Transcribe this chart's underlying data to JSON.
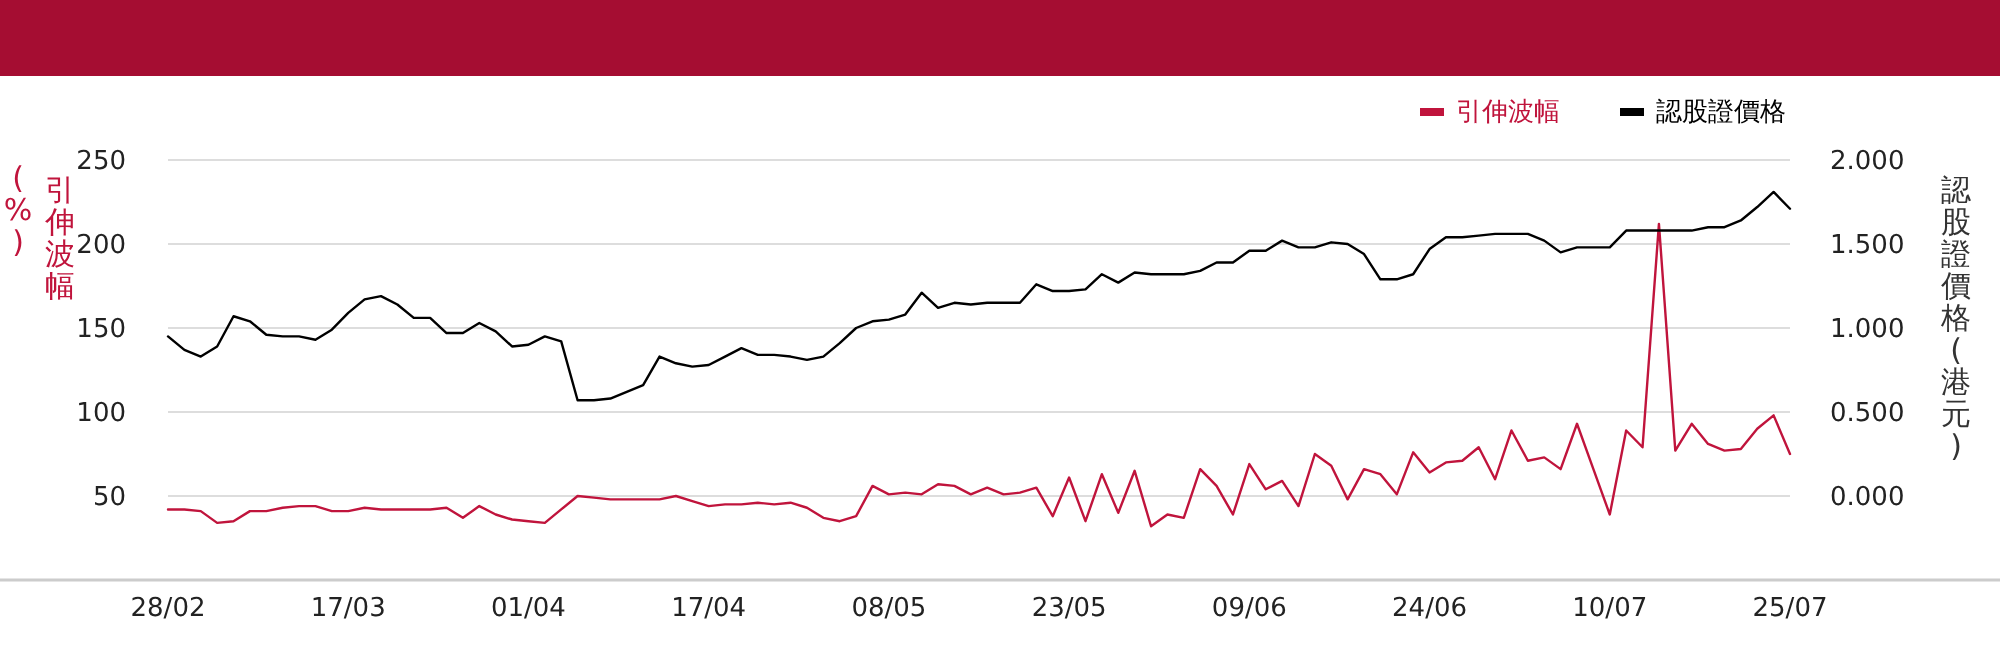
{
  "chart_data": {
    "type": "line",
    "categories": [
      "28/02",
      null,
      null,
      null,
      null,
      null,
      null,
      null,
      null,
      null,
      null,
      "17/03",
      null,
      null,
      null,
      null,
      null,
      null,
      null,
      null,
      null,
      null,
      "01/04",
      null,
      null,
      null,
      null,
      null,
      null,
      null,
      null,
      null,
      null,
      "17/04",
      null,
      null,
      null,
      null,
      null,
      null,
      null,
      null,
      null,
      null,
      "08/05",
      null,
      null,
      null,
      null,
      null,
      null,
      null,
      null,
      null,
      null,
      "23/05",
      null,
      null,
      null,
      null,
      null,
      null,
      null,
      null,
      null,
      null,
      "09/06",
      null,
      null,
      null,
      null,
      null,
      null,
      null,
      null,
      null,
      null,
      "24/06",
      null,
      null,
      null,
      null,
      null,
      null,
      null,
      null,
      null,
      null,
      "10/07",
      null,
      null,
      null,
      null,
      null,
      null,
      null,
      null,
      null,
      null,
      "25/07"
    ],
    "series": [
      {
        "name": "引伸波幅",
        "color": "#c0143c",
        "axis": "y",
        "values": [
          42,
          42,
          41,
          34,
          35,
          41,
          41,
          43,
          44,
          44,
          41,
          41,
          43,
          42,
          42,
          42,
          42,
          43,
          37,
          44,
          39,
          36,
          35,
          34,
          42,
          50,
          49,
          48,
          48,
          48,
          48,
          50,
          47,
          44,
          45,
          45,
          46,
          45,
          46,
          43,
          37,
          35,
          38,
          56,
          51,
          52,
          51,
          57,
          56,
          51,
          55,
          51,
          52,
          55,
          38,
          61,
          35,
          63,
          40,
          65,
          32,
          39,
          37,
          66,
          56,
          39,
          69,
          54,
          59,
          44,
          75,
          68,
          48,
          66,
          63,
          51,
          76,
          64,
          70,
          71,
          79,
          60,
          89,
          71,
          73,
          66,
          93,
          66,
          39,
          89,
          79,
          212,
          77,
          93,
          81,
          77,
          78,
          90,
          98,
          75
        ]
      },
      {
        "name": "認股證價格",
        "color": "#000000",
        "axis": "y2",
        "values": [
          0.95,
          0.87,
          0.83,
          0.89,
          1.07,
          1.04,
          0.96,
          0.95,
          0.95,
          0.93,
          0.99,
          1.09,
          1.17,
          1.19,
          1.14,
          1.06,
          1.06,
          0.97,
          0.97,
          1.03,
          0.98,
          0.89,
          0.9,
          0.95,
          0.92,
          0.57,
          0.57,
          0.58,
          0.62,
          0.66,
          0.83,
          0.79,
          0.77,
          0.78,
          0.83,
          0.88,
          0.84,
          0.84,
          0.83,
          0.81,
          0.83,
          0.91,
          1.0,
          1.04,
          1.05,
          1.08,
          1.21,
          1.12,
          1.15,
          1.14,
          1.15,
          1.15,
          1.15,
          1.26,
          1.22,
          1.22,
          1.23,
          1.32,
          1.27,
          1.33,
          1.32,
          1.32,
          1.32,
          1.34,
          1.39,
          1.39,
          1.46,
          1.46,
          1.52,
          1.48,
          1.48,
          1.51,
          1.5,
          1.44,
          1.29,
          1.29,
          1.32,
          1.47,
          1.54,
          1.54,
          1.55,
          1.56,
          1.56,
          1.56,
          1.52,
          1.45,
          1.48,
          1.48,
          1.48,
          1.58,
          1.58,
          1.58,
          1.58,
          1.58,
          1.6,
          1.6,
          1.64,
          1.72,
          1.81,
          1.71
        ]
      }
    ],
    "ylabel": "引伸波幅(%)",
    "y2label": "認股證價格(港元)",
    "ylim": [
      0,
      250
    ],
    "yticks": [
      50,
      100,
      150,
      200,
      250
    ],
    "y2lim": [
      -0.5,
      2.0
    ],
    "y2ticks": [
      {
        "value": 0,
        "label": "0.000"
      },
      {
        "value": 0.5,
        "label": "0.500"
      },
      {
        "value": 1,
        "label": "1.000"
      },
      {
        "value": 1.5,
        "label": "1.500"
      },
      {
        "value": 2,
        "label": "2.000"
      }
    ],
    "grid": "y",
    "legend": "top right"
  }
}
